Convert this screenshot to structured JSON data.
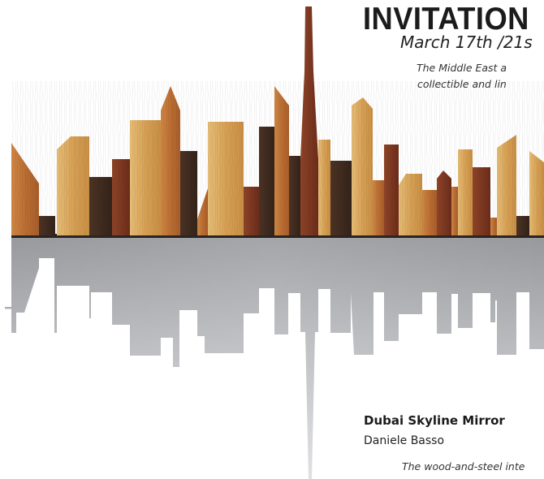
{
  "invitation": {
    "title": "INVITATION",
    "date": "March 17th /21s",
    "description_line1": "The Middle East a",
    "description_line2": "collectible and lin"
  },
  "artwork": {
    "title": "Dubai Skyline Mirror",
    "artist": "Daniele Basso",
    "caption": "The wood-and-steel inte"
  },
  "colors": {
    "wood_light": "#dba85e",
    "wood_mid": "#c0743a",
    "wood_dark": "#3f2a1e",
    "wood_red": "#7d3520",
    "steel": "#b5b7ba",
    "text": "#1b1b1b"
  }
}
